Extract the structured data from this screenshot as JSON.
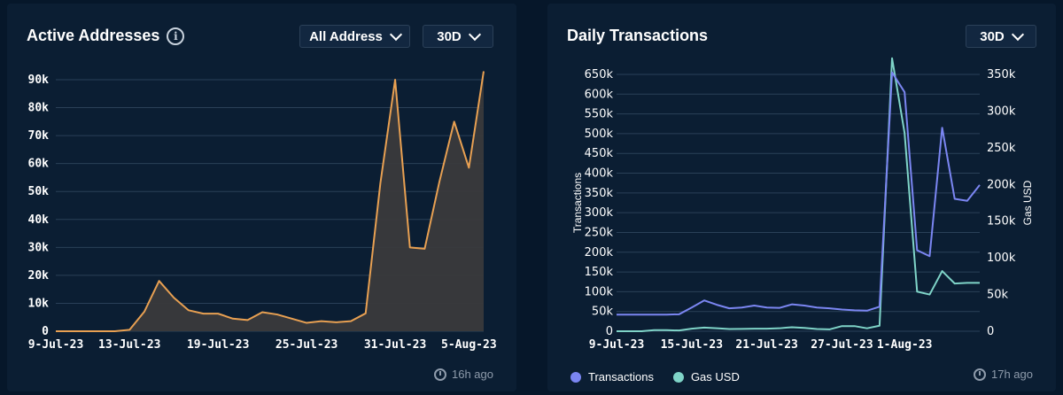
{
  "left": {
    "title": "Active Addresses",
    "filter_label": "All Address",
    "range_label": "30D",
    "updated": "16h ago"
  },
  "right": {
    "title": "Daily Transactions",
    "range_label": "30D",
    "updated": "17h ago"
  },
  "colors": {
    "active_line": "#e8a052",
    "active_fill": "#3a3a3c",
    "tx_line": "#7b86f2",
    "gas_line": "#7fd4c8",
    "grid": "#2a4058"
  },
  "chart_data": [
    {
      "type": "area",
      "title": "Active Addresses",
      "xlabel": "",
      "ylabel": "",
      "ylim": [
        0,
        90000
      ],
      "yticks": [
        0,
        10000,
        20000,
        30000,
        40000,
        50000,
        60000,
        70000,
        80000,
        90000
      ],
      "ytick_labels": [
        "0",
        "10k",
        "20k",
        "30k",
        "40k",
        "50k",
        "60k",
        "70k",
        "80k",
        "90k"
      ],
      "x_tick_labels": [
        "9-Jul-23",
        "13-Jul-23",
        "19-Jul-23",
        "25-Jul-23",
        "31-Jul-23",
        "5-Aug-23"
      ],
      "x_tick_index": [
        0,
        5,
        11,
        17,
        23,
        28
      ],
      "grid": true,
      "series": [
        {
          "values": [
            0,
            0,
            0,
            0,
            0,
            500,
            7000,
            18000,
            12000,
            7500,
            6300,
            6300,
            4500,
            4000,
            6800,
            6000,
            4500,
            3000,
            3600,
            3200,
            3600,
            6400,
            53000,
            90000,
            30000,
            29500,
            53500,
            75000,
            58500,
            93000
          ]
        }
      ]
    },
    {
      "type": "line",
      "title": "Daily Transactions",
      "xlabel": "",
      "ylabel": "Transactions",
      "y2label": "Gas USD",
      "ylim": [
        0,
        650000
      ],
      "y2lim": [
        0,
        350000
      ],
      "yticks": [
        0,
        50000,
        100000,
        150000,
        200000,
        250000,
        300000,
        350000,
        400000,
        450000,
        500000,
        550000,
        600000,
        650000
      ],
      "ytick_labels": [
        "0",
        "50k",
        "100k",
        "150k",
        "200k",
        "250k",
        "300k",
        "350k",
        "400k",
        "450k",
        "500k",
        "550k",
        "600k",
        "650k"
      ],
      "y2ticks": [
        0,
        50000,
        100000,
        150000,
        200000,
        250000,
        300000,
        350000
      ],
      "y2tick_labels": [
        "0",
        "50k",
        "100k",
        "150k",
        "200k",
        "250k",
        "300k",
        "350k"
      ],
      "x_tick_labels": [
        "9-Jul-23",
        "15-Jul-23",
        "21-Jul-23",
        "27-Jul-23",
        "1-Aug-23"
      ],
      "x_tick_index": [
        0,
        6,
        12,
        18,
        23
      ],
      "grid": true,
      "legend": "bottom-left",
      "series": [
        {
          "name": "Transactions",
          "axis": "left",
          "values": [
            42000,
            42000,
            42000,
            42000,
            42000,
            43000,
            60000,
            78000,
            67000,
            58000,
            60000,
            65000,
            60000,
            59000,
            68000,
            65000,
            60000,
            58000,
            55000,
            53000,
            52000,
            62000,
            655000,
            605000,
            205000,
            190000,
            515000,
            335000,
            330000,
            370000
          ]
        },
        {
          "name": "Gas USD",
          "axis": "right",
          "values": [
            0,
            0,
            0,
            1500,
            1500,
            1000,
            3500,
            5000,
            4000,
            3000,
            3200,
            3500,
            3500,
            4000,
            5500,
            4500,
            3000,
            2500,
            7000,
            7000,
            4000,
            7500,
            372000,
            270000,
            54000,
            50000,
            82000,
            65000,
            66000,
            66000
          ]
        }
      ]
    }
  ]
}
